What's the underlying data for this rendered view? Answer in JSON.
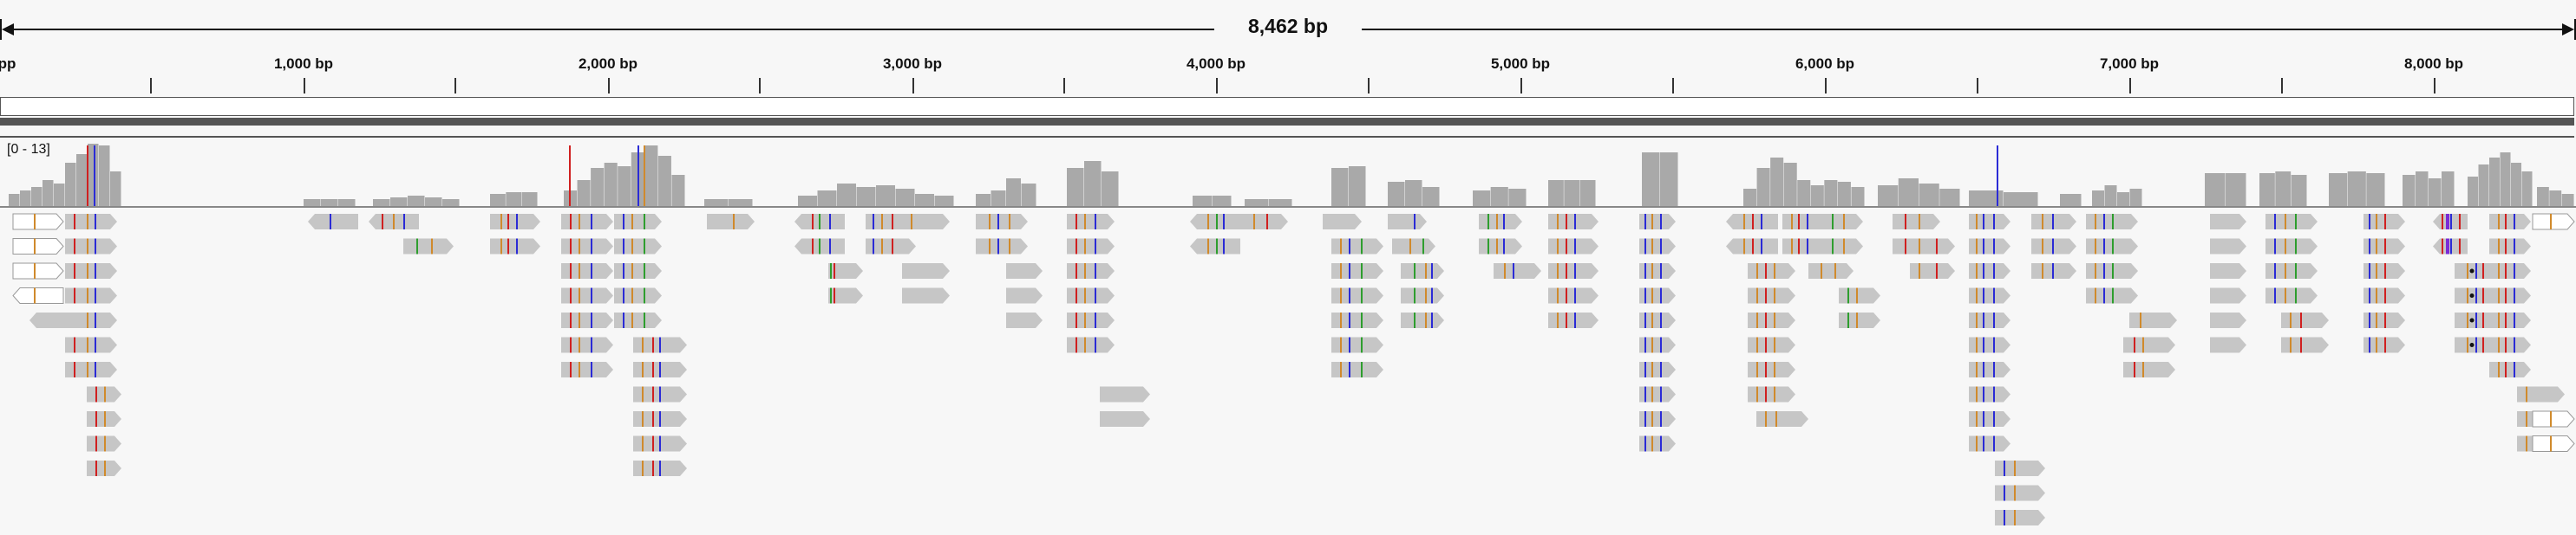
{
  "ruler": {
    "span_label": "8,462 bp",
    "ticks": [
      "pp",
      "1,000 bp",
      "2,000 bp",
      "3,000 bp",
      "4,000 bp",
      "5,000 bp",
      "6,000 bp",
      "7,000 bp",
      "8,000 bp"
    ]
  },
  "coverage": {
    "scale_label": "[0 - 13]"
  },
  "colors": {
    "read_fill": "#c6c6c6",
    "coverage_fill": "#a9a9a9",
    "mismatch_a": "#2e9e2e",
    "mismatch_c": "#2b2bd6",
    "mismatch_g": "#d08a2c",
    "mismatch_t": "#d02020",
    "insertion": "#7a2bd6"
  }
}
